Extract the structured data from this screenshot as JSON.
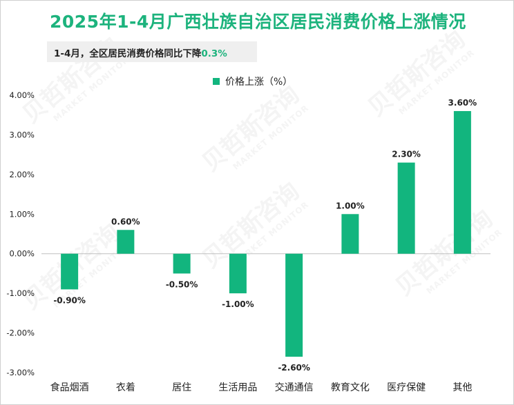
{
  "title": "2025年1-4月广西壮族自治区居民消费价格上涨情况",
  "subtitle": {
    "text": "1-4月，全区居民消费价格同比下降",
    "highlight": "0.3%"
  },
  "watermark": {
    "cn": "贝哲斯咨询",
    "en": "MARKET MONITOR"
  },
  "colors": {
    "bar": "#12b57e",
    "title": "#1db37d",
    "axis": "#bfbfbf"
  },
  "chart_data": {
    "type": "bar",
    "categories": [
      "食品烟酒",
      "衣着",
      "居住",
      "生活用品",
      "交通通信",
      "教育文化",
      "医疗保健",
      "其他"
    ],
    "series": [
      {
        "name": "价格上涨（%）",
        "values": [
          -0.9,
          0.6,
          -0.5,
          -1.0,
          -2.6,
          1.0,
          2.3,
          3.6
        ]
      }
    ],
    "data_labels": [
      "-0.90%",
      "0.60%",
      "-0.50%",
      "-1.00%",
      "-2.60%",
      "1.00%",
      "2.30%",
      "3.60%"
    ],
    "yticks": [
      "4.00%",
      "3.00%",
      "2.00%",
      "1.00%",
      "0.00%",
      "-1.00%",
      "-2.00%",
      "-3.00%"
    ],
    "ylim": [
      -3,
      4
    ],
    "legend": "top-center",
    "grid": false
  }
}
